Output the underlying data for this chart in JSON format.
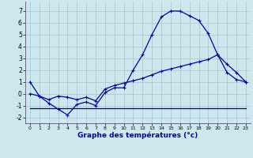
{
  "xlabel": "Graphe des températures (°c)",
  "bg_color": "#cce8ee",
  "grid_color": "#aacccc",
  "line_color": "#0000aa",
  "xlim": [
    -0.5,
    23.5
  ],
  "ylim": [
    -2.5,
    7.8
  ],
  "xticks": [
    0,
    1,
    2,
    3,
    4,
    5,
    6,
    7,
    8,
    9,
    10,
    11,
    12,
    13,
    14,
    15,
    16,
    17,
    18,
    19,
    20,
    21,
    22,
    23
  ],
  "yticks": [
    -2,
    -1,
    0,
    1,
    2,
    3,
    4,
    5,
    6,
    7
  ],
  "line1_x": [
    0,
    1,
    2,
    3,
    4,
    5,
    6,
    7,
    8,
    9,
    10,
    11,
    12,
    13,
    14,
    15,
    16,
    17,
    18,
    19,
    20,
    21,
    22,
    23
  ],
  "line1_y": [
    1.0,
    -0.2,
    -0.8,
    -1.3,
    -1.8,
    -0.9,
    -0.7,
    -1.0,
    0.1,
    0.5,
    0.5,
    2.0,
    3.3,
    5.0,
    6.5,
    7.0,
    7.0,
    6.6,
    6.2,
    5.1,
    3.3,
    2.5,
    1.8,
    1.0
  ],
  "line2_x": [
    0,
    1,
    2,
    3,
    4,
    5,
    6,
    7,
    8,
    9,
    10,
    11,
    12,
    13,
    14,
    15,
    16,
    17,
    18,
    19,
    20,
    21,
    22,
    23
  ],
  "line2_y": [
    0.0,
    -0.2,
    -0.5,
    -0.2,
    -0.3,
    -0.5,
    -0.3,
    -0.6,
    0.4,
    0.7,
    0.9,
    1.1,
    1.3,
    1.6,
    1.9,
    2.1,
    2.3,
    2.5,
    2.7,
    2.9,
    3.3,
    1.8,
    1.2,
    1.0
  ],
  "line3_x": [
    0,
    23
  ],
  "line3_y": [
    -1.2,
    -1.2
  ]
}
